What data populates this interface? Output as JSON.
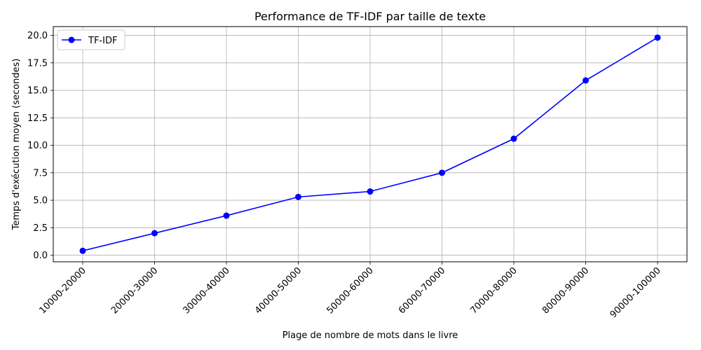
{
  "chart_data": {
    "type": "line",
    "title": "Performance de TF-IDF par taille de texte",
    "xlabel": "Plage de nombre de mots dans le livre",
    "ylabel": "Temps d'exécution moyen (secondes)",
    "categories": [
      "10000-20000",
      "20000-30000",
      "30000-40000",
      "40000-50000",
      "50000-60000",
      "60000-70000",
      "70000-80000",
      "80000-90000",
      "90000-100000"
    ],
    "series": [
      {
        "name": "TF-IDF",
        "color": "#0000ff",
        "marker": "circle",
        "values": [
          0.4,
          2.0,
          3.6,
          5.3,
          5.8,
          7.5,
          10.6,
          15.9,
          19.8
        ]
      }
    ],
    "yticks": [
      "0.0",
      "2.5",
      "5.0",
      "7.5",
      "10.0",
      "12.5",
      "15.0",
      "17.5",
      "20.0"
    ],
    "ylim": [
      -0.6,
      20.8
    ],
    "grid": true,
    "legend_position": "top-left"
  }
}
